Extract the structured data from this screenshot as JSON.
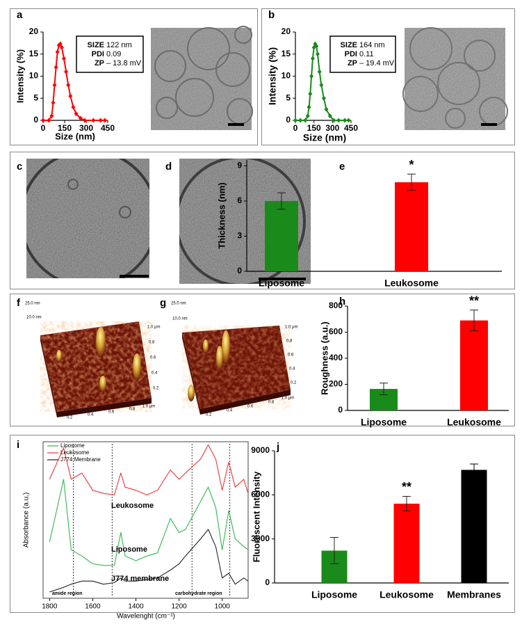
{
  "panels": [
    "a",
    "b",
    "c",
    "d",
    "e",
    "f",
    "g",
    "h",
    "i",
    "j"
  ],
  "afm": [
    {
      "z_top": "25.0 nm",
      "z_mid": "10.0 nm",
      "ticks": [
        "0.2",
        "0.4",
        "0.6",
        "0.8",
        "1.0 µm"
      ]
    },
    {
      "z_top": "25.0 nm",
      "z_mid": "10.0 nm",
      "ticks": [
        "0.2",
        "0.4",
        "0.6",
        "0.8",
        "1.0 µm"
      ]
    }
  ],
  "chart_data": [
    {
      "type": "line",
      "xlabel": "Size (nm)",
      "ylabel": "Intensity (%)",
      "color": "#ff0000",
      "markers": true,
      "x": [
        0,
        40,
        60,
        70,
        80,
        90,
        100,
        110,
        120,
        130,
        145,
        160,
        175,
        190,
        210,
        230,
        260,
        290,
        350,
        400,
        430
      ],
      "values": [
        0,
        0,
        1,
        4,
        8,
        12,
        15.5,
        17,
        17.3,
        16.5,
        14,
        11,
        8,
        5.5,
        3,
        1.5,
        0.5,
        0,
        0,
        0,
        0
      ],
      "xlim": [
        0,
        450
      ],
      "xticks": [
        0,
        150,
        300,
        450
      ],
      "ylim": [
        0,
        20
      ],
      "yticks": [
        0,
        5,
        10,
        15,
        20
      ],
      "info": [
        {
          "label": "SIZE",
          "value": "122 nm"
        },
        {
          "label": "PDI",
          "value": "0.09"
        },
        {
          "label": "ZP",
          "value": "– 13.8 mV"
        }
      ]
    },
    {
      "type": "line",
      "xlabel": "Size (nm)",
      "ylabel": "Intensity (%)",
      "color": "#1a8a1a",
      "markers": true,
      "x": [
        0,
        40,
        80,
        100,
        110,
        120,
        130,
        140,
        150,
        160,
        170,
        180,
        195,
        210,
        230,
        250,
        280,
        310,
        350,
        400,
        430
      ],
      "values": [
        0,
        0,
        0,
        1,
        3,
        6,
        10,
        14,
        16.5,
        17.3,
        16.8,
        15,
        11,
        8,
        5,
        2.5,
        1,
        0,
        0,
        0,
        0
      ],
      "xlim": [
        0,
        450
      ],
      "xticks": [
        0,
        150,
        300,
        450
      ],
      "ylim": [
        0,
        20
      ],
      "yticks": [
        0,
        5,
        10,
        15,
        20
      ],
      "info": [
        {
          "label": "SIZE",
          "value": "164 nm"
        },
        {
          "label": "PDI",
          "value": "0.11"
        },
        {
          "label": "ZP",
          "value": "– 19.4 mV"
        }
      ]
    },
    {
      "type": "bar",
      "ylabel": "Thickness (nm)",
      "categories": [
        "Liposome",
        "Leukosome"
      ],
      "values": [
        6.0,
        7.6
      ],
      "errors": [
        0.7,
        0.7
      ],
      "colors": [
        "#1a8a1a",
        "#ff0000"
      ],
      "significance": [
        null,
        "*"
      ],
      "ylim": [
        0,
        9.5
      ],
      "yticks": [
        0,
        3,
        6,
        9
      ]
    },
    {
      "type": "bar",
      "ylabel": "Roughness (a.u.)",
      "categories": [
        "Liposome",
        "Leukosome"
      ],
      "values": [
        165,
        690
      ],
      "errors": [
        45,
        80
      ],
      "colors": [
        "#1a8a1a",
        "#ff0000"
      ],
      "significance": [
        null,
        "**"
      ],
      "ylim": [
        0,
        800
      ],
      "yticks": [
        0,
        200,
        400,
        600,
        800
      ]
    },
    {
      "type": "line",
      "xlabel": "Wavelenght (cm⁻¹)",
      "ylabel": "Absorbance (a.u.)",
      "frame": true,
      "x": [
        1800,
        1735,
        1700,
        1650,
        1600,
        1550,
        1500,
        1470,
        1450,
        1400,
        1350,
        1300,
        1240,
        1200,
        1170,
        1100,
        1065,
        1030,
        1000,
        970,
        940,
        900,
        880
      ],
      "series": [
        {
          "name": "Liposome",
          "color": "#2db84d",
          "values": [
            3.6,
            7.6,
            3.1,
            2.7,
            2.2,
            2.1,
            2.1,
            4.2,
            2.7,
            2.4,
            2.7,
            2.9,
            5.1,
            4.2,
            4.4,
            6.2,
            7.1,
            5.8,
            3.1,
            5.6,
            3.8,
            3.3,
            3.1
          ]
        },
        {
          "name": "Leukosome",
          "color": "#ee3333",
          "values": [
            7.6,
            9.6,
            7.6,
            8.0,
            6.9,
            6.7,
            6.6,
            8.0,
            7.1,
            6.9,
            6.6,
            6.9,
            8.2,
            7.6,
            8.0,
            8.9,
            9.8,
            8.9,
            6.9,
            8.7,
            7.1,
            7.6,
            6.7
          ]
        },
        {
          "name": "J774 Membrane",
          "color": "#222222",
          "values": [
            0.4,
            0.7,
            0.9,
            1.1,
            1.1,
            0.9,
            1.0,
            1.3,
            1.1,
            1.1,
            1.2,
            1.3,
            1.8,
            2.2,
            2.7,
            3.8,
            4.4,
            3.3,
            1.3,
            1.6,
            0.9,
            1.3,
            1.1
          ]
        }
      ],
      "vlines": [
        1690,
        1510,
        1140,
        965
      ],
      "annotations": [
        "Leukosome",
        "Liposome",
        "J774 membrane",
        "amide region",
        "carbohydrate region"
      ],
      "xlim": [
        1830,
        880
      ],
      "xticks": [
        1800,
        1600,
        1400,
        1200,
        1000
      ],
      "ylim": [
        0,
        10
      ]
    },
    {
      "type": "bar",
      "ylabel": "Fluorescent Intensity",
      "categories": [
        "Liposome",
        "Leukosome",
        "Membranes"
      ],
      "values": [
        2200,
        5400,
        7700
      ],
      "errors": [
        900,
        500,
        400
      ],
      "colors": [
        "#1a8a1a",
        "#ff0000",
        "#000000"
      ],
      "significance": [
        null,
        "**",
        null
      ],
      "ylim": [
        0,
        9000
      ],
      "yticks": [
        0,
        3000,
        6000,
        9000
      ]
    }
  ]
}
